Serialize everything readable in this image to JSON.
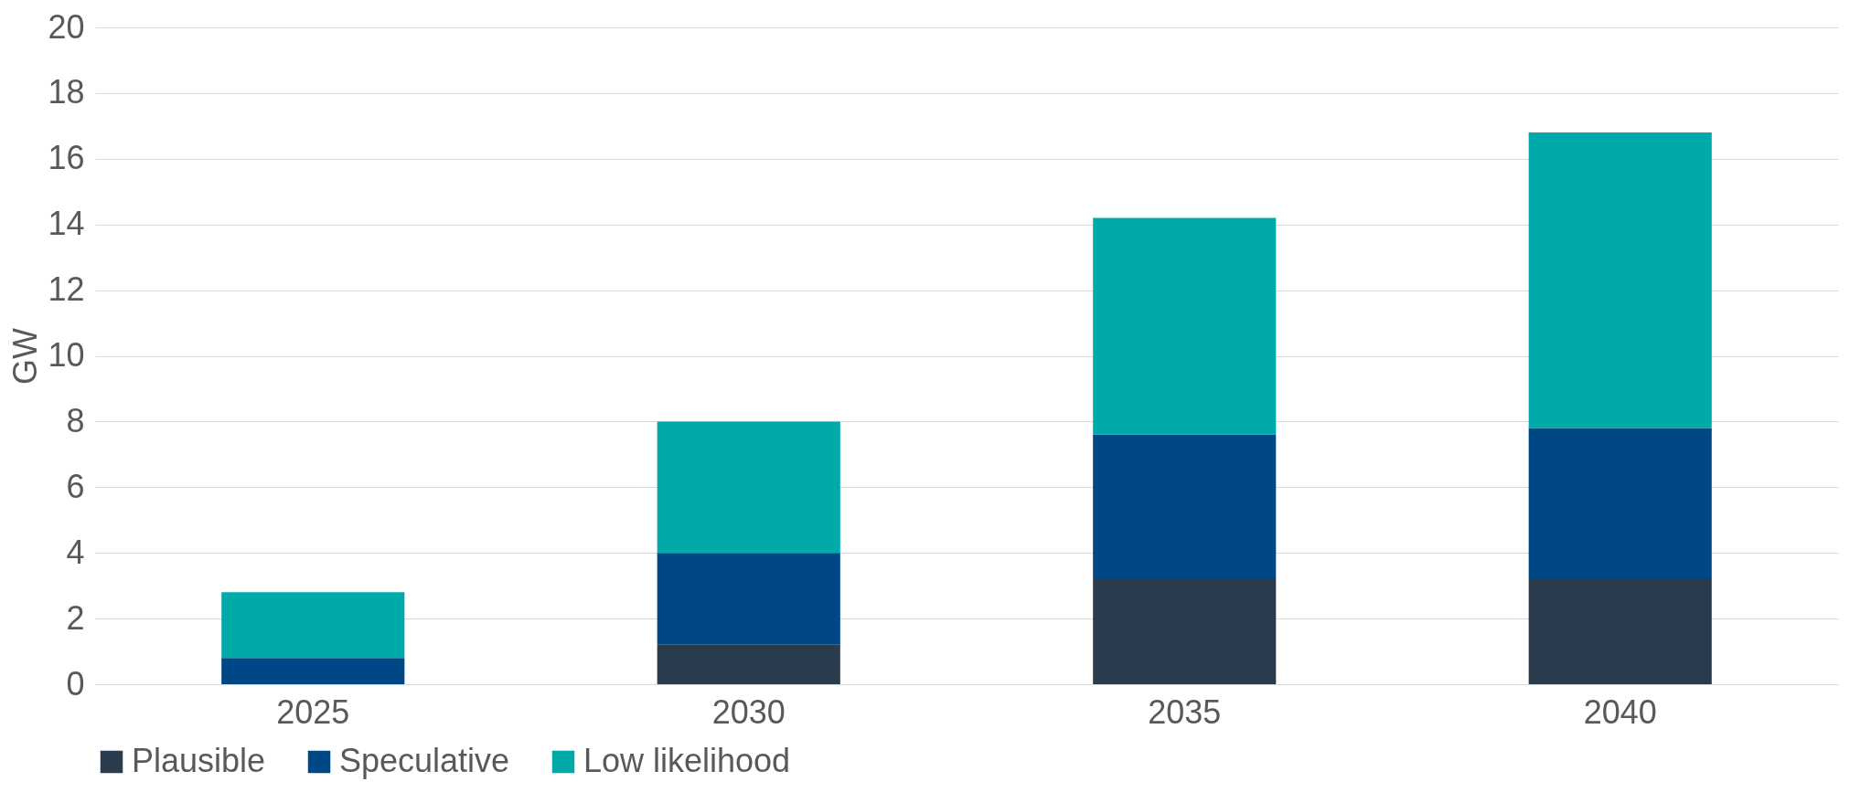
{
  "chart_data": {
    "type": "bar",
    "stacked": true,
    "ylabel": "GW",
    "categories": [
      "2025",
      "2030",
      "2035",
      "2040"
    ],
    "series": [
      {
        "name": "Plausible",
        "color": "#293b4d",
        "values": [
          0,
          1.2,
          3.2,
          3.2
        ]
      },
      {
        "name": "Speculative",
        "color": "#004785",
        "values": [
          0.8,
          2.8,
          4.4,
          4.6
        ]
      },
      {
        "name": "Low likelihood",
        "color": "#00aaa9",
        "values": [
          2.0,
          4.0,
          6.6,
          9.0
        ]
      }
    ],
    "ylim": [
      0,
      20
    ],
    "yticks": [
      0,
      2,
      4,
      6,
      8,
      10,
      12,
      14,
      16,
      18,
      20
    ],
    "grid": "y",
    "legend": "bottom"
  }
}
